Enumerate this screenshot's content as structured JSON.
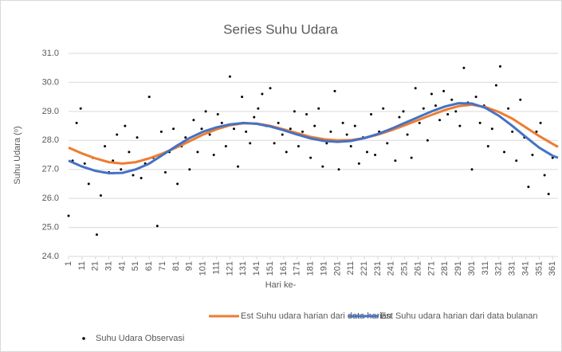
{
  "chart_data": {
    "type": "line",
    "title": "Series Suhu Udara",
    "xlabel": "Hari ke-",
    "ylabel": "Suhu Udara (ᵒ)",
    "xlim": [
      1,
      365
    ],
    "xticks": [
      1,
      11,
      21,
      31,
      41,
      51,
      61,
      71,
      81,
      91,
      101,
      111,
      121,
      131,
      141,
      151,
      161,
      171,
      181,
      191,
      201,
      211,
      221,
      231,
      241,
      251,
      261,
      271,
      281,
      291,
      301,
      311,
      321,
      331,
      341,
      351,
      361
    ],
    "ylim": [
      24,
      31
    ],
    "yticks": [
      {
        "value": 24,
        "label": "24.0"
      },
      {
        "value": 25,
        "label": "25.0"
      },
      {
        "value": 26,
        "label": "26.0"
      },
      {
        "value": 27,
        "label": "27.0"
      },
      {
        "value": 28,
        "label": "28.0"
      },
      {
        "value": 29,
        "label": "29.0"
      },
      {
        "value": 30,
        "label": "30.0"
      },
      {
        "value": 31,
        "label": "31.0"
      }
    ],
    "grid": true,
    "series": [
      {
        "name": "Est Suhu udara harian dari  data harian",
        "color": "#ed7d31",
        "type": "line",
        "x": [
          1,
          11,
          21,
          31,
          41,
          51,
          61,
          71,
          81,
          91,
          101,
          111,
          121,
          131,
          141,
          151,
          161,
          171,
          181,
          191,
          201,
          211,
          221,
          231,
          241,
          251,
          261,
          271,
          281,
          291,
          301,
          311,
          321,
          331,
          341,
          351,
          361,
          365
        ],
        "values": [
          27.75,
          27.55,
          27.38,
          27.25,
          27.2,
          27.25,
          27.38,
          27.55,
          27.75,
          27.97,
          28.2,
          28.38,
          28.52,
          28.59,
          28.58,
          28.5,
          28.38,
          28.25,
          28.12,
          28.04,
          28.0,
          28.01,
          28.08,
          28.2,
          28.35,
          28.52,
          28.7,
          28.88,
          29.05,
          29.18,
          29.23,
          29.15,
          28.98,
          28.75,
          28.45,
          28.15,
          27.88,
          27.78
        ]
      },
      {
        "name": "Est Suhu udara harian dari  data bulanan",
        "color": "#4472c4",
        "type": "line",
        "x": [
          1,
          11,
          21,
          31,
          41,
          51,
          61,
          71,
          81,
          91,
          101,
          111,
          121,
          131,
          141,
          151,
          161,
          171,
          181,
          191,
          201,
          211,
          221,
          231,
          241,
          251,
          261,
          271,
          281,
          291,
          301,
          311,
          321,
          331,
          341,
          351,
          361,
          365
        ],
        "values": [
          27.3,
          27.1,
          26.95,
          26.87,
          26.88,
          27.0,
          27.2,
          27.5,
          27.8,
          28.08,
          28.3,
          28.45,
          28.55,
          28.6,
          28.57,
          28.48,
          28.35,
          28.2,
          28.07,
          27.98,
          27.95,
          27.98,
          28.08,
          28.22,
          28.4,
          28.6,
          28.8,
          29.0,
          29.17,
          29.28,
          29.27,
          29.12,
          28.85,
          28.5,
          28.12,
          27.75,
          27.47,
          27.4
        ]
      },
      {
        "name": "Suhu Udara Observasi",
        "color": "#000000",
        "type": "scatter",
        "x": [
          1,
          4,
          7,
          10,
          13,
          16,
          19,
          22,
          25,
          28,
          31,
          34,
          37,
          40,
          43,
          46,
          49,
          52,
          55,
          58,
          61,
          64,
          67,
          70,
          73,
          76,
          79,
          82,
          85,
          88,
          91,
          94,
          97,
          100,
          103,
          106,
          109,
          112,
          115,
          118,
          121,
          124,
          127,
          130,
          133,
          136,
          139,
          142,
          145,
          148,
          151,
          154,
          157,
          160,
          163,
          166,
          169,
          172,
          175,
          178,
          181,
          184,
          187,
          190,
          193,
          196,
          199,
          202,
          205,
          208,
          211,
          214,
          217,
          220,
          223,
          226,
          229,
          232,
          235,
          238,
          241,
          244,
          247,
          250,
          253,
          256,
          259,
          262,
          265,
          268,
          271,
          274,
          277,
          280,
          283,
          286,
          289,
          292,
          295,
          298,
          301,
          304,
          307,
          310,
          313,
          316,
          319,
          322,
          325,
          328,
          331,
          334,
          337,
          340,
          343,
          346,
          349,
          352,
          355,
          358,
          361,
          364
        ],
        "values": [
          25.4,
          27.3,
          28.6,
          29.1,
          27.2,
          26.5,
          27.4,
          24.75,
          26.1,
          27.8,
          26.9,
          27.3,
          28.2,
          27.0,
          28.5,
          27.6,
          26.8,
          28.1,
          26.7,
          27.2,
          29.5,
          27.4,
          25.05,
          28.3,
          26.9,
          27.6,
          28.4,
          26.5,
          27.8,
          28.1,
          27.0,
          28.7,
          27.6,
          28.4,
          29.0,
          28.2,
          27.5,
          28.9,
          28.6,
          27.8,
          30.2,
          28.4,
          27.1,
          29.5,
          28.3,
          27.9,
          28.8,
          29.1,
          29.6,
          28.5,
          29.8,
          27.9,
          28.6,
          28.2,
          27.6,
          28.4,
          29.0,
          27.8,
          28.3,
          28.9,
          27.4,
          28.5,
          29.1,
          27.1,
          27.9,
          28.3,
          29.7,
          27.0,
          28.6,
          28.2,
          27.8,
          28.5,
          27.2,
          28.1,
          27.6,
          28.9,
          27.5,
          28.3,
          29.1,
          27.9,
          28.4,
          27.3,
          28.8,
          29.0,
          28.2,
          27.4,
          29.8,
          28.6,
          29.1,
          28.0,
          29.6,
          29.2,
          28.7,
          29.7,
          28.9,
          29.4,
          29.0,
          28.5,
          30.5,
          29.3,
          27.0,
          29.5,
          28.6,
          29.2,
          27.8,
          28.4,
          29.9,
          30.55,
          27.6,
          29.1,
          28.3,
          27.3,
          29.4,
          28.1,
          26.4,
          27.5,
          28.3,
          28.6,
          26.8,
          26.15,
          27.4,
          27.8
        ]
      }
    ]
  }
}
